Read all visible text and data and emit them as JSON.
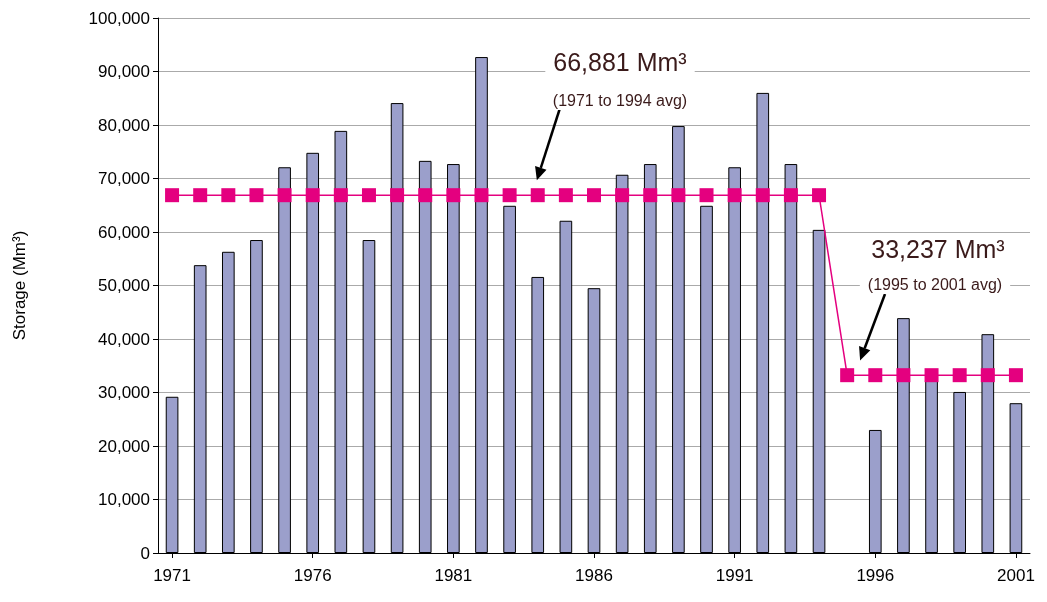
{
  "chart_data": {
    "type": "bar",
    "ylabel": "Storage (Mm³)",
    "x": [
      1971,
      1972,
      1973,
      1974,
      1975,
      1976,
      1977,
      1978,
      1979,
      1980,
      1981,
      1982,
      1983,
      1984,
      1985,
      1986,
      1987,
      1988,
      1989,
      1990,
      1991,
      1992,
      1993,
      1994,
      1995,
      1996,
      1997,
      1998,
      1999,
      2000,
      2001
    ],
    "series": [
      {
        "color": "#9b9fcb",
        "values": [
          29200,
          53800,
          56300,
          58500,
          72100,
          74800,
          78900,
          58500,
          84100,
          73300,
          72700,
          92700,
          64900,
          51600,
          62100,
          49500,
          70700,
          72700,
          79800,
          64900,
          72100,
          86000,
          72700,
          60400,
          null,
          23000,
          43900,
          32500,
          30100,
          40900,
          28000
        ]
      },
      {
        "type": "line",
        "color": "#e4007f",
        "marker": "square",
        "values": [
          66881,
          66881,
          66881,
          66881,
          66881,
          66881,
          66881,
          66881,
          66881,
          66881,
          66881,
          66881,
          66881,
          66881,
          66881,
          66881,
          66881,
          66881,
          66881,
          66881,
          66881,
          66881,
          66881,
          66881,
          33237,
          33237,
          33237,
          33237,
          33237,
          33237,
          33237
        ]
      }
    ],
    "xlim": [
      1970.5,
      2001.5
    ],
    "xticks": [
      1971,
      1976,
      1981,
      1986,
      1991,
      1996,
      2001
    ],
    "ylim": [
      0,
      100000
    ],
    "yticks": [
      0,
      {
        "value": 10000,
        "label": "10,000"
      },
      {
        "value": 20000,
        "label": "20,000"
      },
      {
        "value": 30000,
        "label": "30,000"
      },
      {
        "value": 40000,
        "label": "40,000"
      },
      {
        "value": 50000,
        "label": "50,000"
      },
      {
        "value": 60000,
        "label": "60,000"
      },
      {
        "value": 70000,
        "label": "70,000"
      },
      {
        "value": 80000,
        "label": "80,000"
      },
      {
        "value": 90000,
        "label": "90,000"
      },
      {
        "value": 100000,
        "label": "100,000"
      }
    ],
    "grid": "y",
    "annotations": [
      "66,881 Mm³",
      "(1971 to 1994 avg)",
      "33,237 Mm³",
      "(1995 to 2001 avg)"
    ]
  }
}
